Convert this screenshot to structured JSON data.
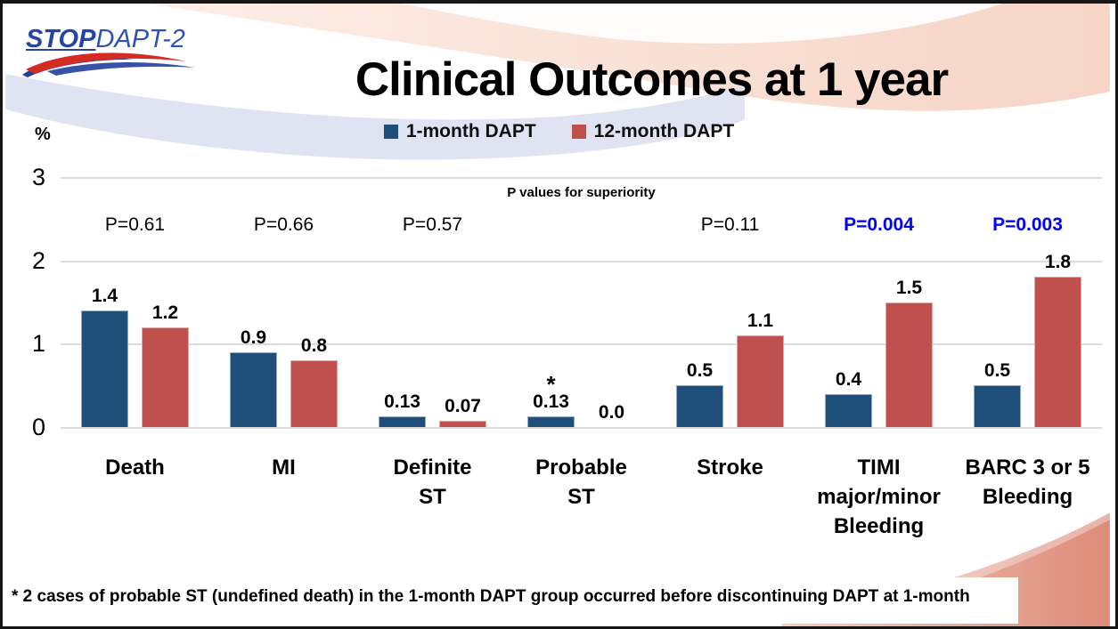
{
  "logo": {
    "part1": "STOP",
    "part2": "DAPT-2"
  },
  "title": "Clinical Outcomes at 1 year",
  "legend": [
    {
      "label": "1-month DAPT",
      "color": "#1f4e7b"
    },
    {
      "label": "12-month DAPT",
      "color": "#c0504d"
    }
  ],
  "footnote": "* 2 cases of probable ST (undefined death) in the 1-month DAPT group occurred before discontinuing DAPT at 1-month",
  "chart_data": {
    "type": "bar",
    "title": "Clinical Outcomes at 1 year",
    "ylabel": "%",
    "ylim": [
      0,
      3
    ],
    "yticks": [
      0,
      1,
      2,
      3
    ],
    "grid": true,
    "legend_position": "top",
    "p_values_header": "P values for superiority",
    "categories": [
      "Death",
      "MI",
      "Definite ST",
      "Probable ST",
      "Stroke",
      "TIMI major/minor Bleeding",
      "BARC 3 or 5 Bleeding"
    ],
    "category_lines": [
      [
        "Death"
      ],
      [
        "MI"
      ],
      [
        "Definite",
        "ST"
      ],
      [
        "Probable",
        "ST"
      ],
      [
        "Stroke"
      ],
      [
        "TIMI",
        "major/minor",
        "Bleeding"
      ],
      [
        "BARC 3 or 5",
        "Bleeding"
      ]
    ],
    "series": [
      {
        "name": "1-month DAPT",
        "color": "#1f4e7b",
        "border": "#8fa9c7",
        "values": [
          1.4,
          0.9,
          0.13,
          0.13,
          0.5,
          0.4,
          0.5
        ],
        "labels": [
          "1.4",
          "0.9",
          "0.13",
          "0.13",
          "0.5",
          "0.4",
          "0.5"
        ]
      },
      {
        "name": "12-month DAPT",
        "color": "#c0504d",
        "border": "#dda9a4",
        "values": [
          1.2,
          0.8,
          0.07,
          0.0,
          1.1,
          1.5,
          1.8
        ],
        "labels": [
          "1.2",
          "0.8",
          "0.07",
          "0.0",
          "1.1",
          "1.5",
          "1.8"
        ]
      }
    ],
    "p_values": [
      "P=0.61",
      "P=0.66",
      "P=0.57",
      "",
      "P=0.11",
      "P=0.004",
      "P=0.003"
    ],
    "p_value_highlight": [
      false,
      false,
      false,
      false,
      false,
      true,
      true
    ],
    "annotations": [
      {
        "category": "Probable ST",
        "series": "1-month DAPT",
        "marker": "*"
      }
    ],
    "colors": {
      "highlight_p": "#0000fe",
      "grid": "#dcdcdc"
    }
  }
}
